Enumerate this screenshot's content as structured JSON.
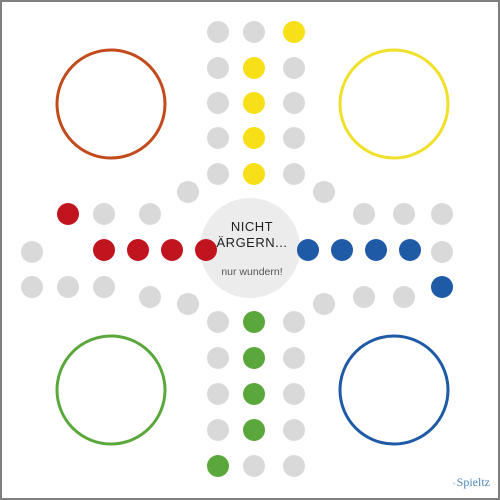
{
  "title": {
    "line1": "NICHT",
    "line2": "ÄRGERN...",
    "subtitle": "nur wundern!"
  },
  "brand": {
    "mark": "◦",
    "label": "Spieltz"
  },
  "colors": {
    "border": "#7f7f7f",
    "empty_field": "#d9d9d9",
    "center_circle": "#ececec",
    "red": "#c0141e",
    "yellow": "#f7e017",
    "green": "#5aa83b",
    "blue": "#1f5aa6",
    "red_home": "#c24a1c",
    "yellow_home": "#f2df2a",
    "green_home": "#5aa83b",
    "blue_home": "#1f5aa6"
  },
  "home_areas": [
    {
      "player": "red",
      "color": "#c24a1c"
    },
    {
      "player": "yellow",
      "color": "#f2df2a"
    },
    {
      "player": "green",
      "color": "#5aa83b"
    },
    {
      "player": "blue",
      "color": "#1f5aa6"
    }
  ],
  "pieces": {
    "red": {
      "start": 1,
      "goal": 4
    },
    "yellow": {
      "start": 1,
      "goal": 4
    },
    "green": {
      "start": 1,
      "goal": 4
    },
    "blue": {
      "start": 1,
      "goal": 4
    }
  }
}
